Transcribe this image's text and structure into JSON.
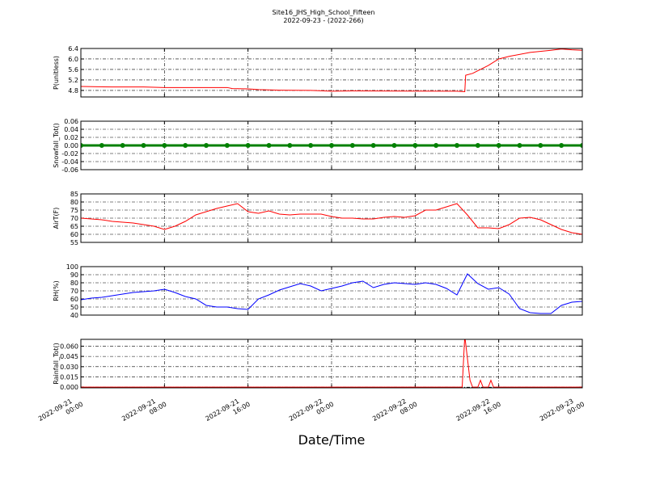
{
  "title": "Site16_JHS_High_School_Fifteen",
  "subtitle": "2022-09-23 - (2022-266)",
  "xlabel": "Date/Time",
  "chart_data": [
    {
      "type": "line",
      "ylabel": "P(unitless)",
      "color": "#ff0000",
      "grid": true,
      "xlim": [
        "2022-09-21 00:00",
        "2022-09-23 00:00"
      ],
      "ylim": [
        4.55,
        6.4
      ],
      "xticks": [
        "2022-09-21 00:00",
        "2022-09-21 08:00",
        "2022-09-21 16:00",
        "2022-09-22 00:00",
        "2022-09-22 08:00",
        "2022-09-22 16:00",
        "2022-09-23 00:00"
      ],
      "yticks": [
        4.8,
        5.2,
        5.6,
        {
          "value": 6,
          "label": "6.0"
        },
        6.4
      ],
      "x": [
        "2022-09-21 00:00",
        "2022-09-21 03:00",
        "2022-09-21 06:00",
        "2022-09-21 08:00",
        "2022-09-21 14:00",
        "2022-09-21 14:30",
        "2022-09-21 16:00",
        "2022-09-21 17:00",
        "2022-09-21 19:00",
        "2022-09-21 22:00",
        "2022-09-22 00:00",
        "2022-09-22 02:00",
        "2022-09-22 12:00",
        "2022-09-22 12:45",
        "2022-09-22 12:50",
        "2022-09-22 13:30",
        "2022-09-22 14:00",
        "2022-09-22 15:00",
        "2022-09-22 16:00",
        "2022-09-22 17:00",
        "2022-09-22 19:00",
        "2022-09-22 21:00",
        "2022-09-22 22:00",
        "2022-09-22 23:00",
        "2022-09-23 00:00"
      ],
      "values": [
        4.95,
        4.93,
        4.93,
        4.91,
        4.91,
        4.87,
        4.86,
        4.83,
        4.81,
        4.8,
        4.77,
        4.78,
        4.77,
        4.75,
        5.38,
        5.45,
        5.55,
        5.75,
        6.0,
        6.1,
        6.25,
        6.33,
        6.38,
        6.35,
        6.33
      ]
    },
    {
      "type": "line",
      "ylabel": "Snowfall_Tot()",
      "color": "#008000",
      "grid": true,
      "markers": true,
      "xlim": [
        "2022-09-21 00:00",
        "2022-09-23 00:00"
      ],
      "ylim": [
        -0.06,
        0.06
      ],
      "xticks": [
        "2022-09-21 00:00",
        "2022-09-21 08:00",
        "2022-09-21 16:00",
        "2022-09-22 00:00",
        "2022-09-22 08:00",
        "2022-09-22 16:00",
        "2022-09-23 00:00"
      ],
      "yticks": [
        -0.06,
        -0.04,
        -0.02,
        {
          "value": 0,
          "label": "0.00"
        },
        0.02,
        0.04,
        0.06
      ],
      "x": [
        "2022-09-21 00:00",
        "2022-09-21 02:00",
        "2022-09-21 04:00",
        "2022-09-21 06:00",
        "2022-09-21 08:00",
        "2022-09-21 10:00",
        "2022-09-21 12:00",
        "2022-09-21 14:00",
        "2022-09-21 16:00",
        "2022-09-21 18:00",
        "2022-09-21 20:00",
        "2022-09-21 22:00",
        "2022-09-22 00:00",
        "2022-09-22 02:00",
        "2022-09-22 04:00",
        "2022-09-22 06:00",
        "2022-09-22 08:00",
        "2022-09-22 10:00",
        "2022-09-22 12:00",
        "2022-09-22 14:00",
        "2022-09-22 16:00",
        "2022-09-22 18:00",
        "2022-09-22 20:00",
        "2022-09-22 22:00",
        "2022-09-23 00:00"
      ],
      "values": [
        0,
        0,
        0,
        0,
        0,
        0,
        0,
        0,
        0,
        0,
        0,
        0,
        0,
        0,
        0,
        0,
        0,
        0,
        0,
        0,
        0,
        0,
        0,
        0,
        0
      ]
    },
    {
      "type": "line",
      "ylabel": "AirT(F)",
      "color": "#ff0000",
      "grid": true,
      "xlim": [
        "2022-09-21 00:00",
        "2022-09-23 00:00"
      ],
      "ylim": [
        55,
        85
      ],
      "xticks": [
        "2022-09-21 00:00",
        "2022-09-21 08:00",
        "2022-09-21 16:00",
        "2022-09-22 00:00",
        "2022-09-22 08:00",
        "2022-09-22 16:00",
        "2022-09-23 00:00"
      ],
      "yticks": [
        55,
        60,
        65,
        70,
        75,
        80,
        85
      ],
      "x": [
        "2022-09-21 00:00",
        "2022-09-21 01:00",
        "2022-09-21 02:00",
        "2022-09-21 03:00",
        "2022-09-21 04:00",
        "2022-09-21 05:00",
        "2022-09-21 06:00",
        "2022-09-21 07:00",
        "2022-09-21 08:00",
        "2022-09-21 09:00",
        "2022-09-21 10:00",
        "2022-09-21 11:00",
        "2022-09-21 12:00",
        "2022-09-21 13:00",
        "2022-09-21 14:00",
        "2022-09-21 15:00",
        "2022-09-21 16:00",
        "2022-09-21 17:00",
        "2022-09-21 18:00",
        "2022-09-21 19:00",
        "2022-09-21 20:00",
        "2022-09-21 21:00",
        "2022-09-21 22:00",
        "2022-09-21 23:00",
        "2022-09-22 00:00",
        "2022-09-22 01:00",
        "2022-09-22 02:00",
        "2022-09-22 03:00",
        "2022-09-22 04:00",
        "2022-09-22 05:00",
        "2022-09-22 06:00",
        "2022-09-22 07:00",
        "2022-09-22 08:00",
        "2022-09-22 09:00",
        "2022-09-22 10:00",
        "2022-09-22 11:00",
        "2022-09-22 12:00",
        "2022-09-22 13:00",
        "2022-09-22 14:00",
        "2022-09-22 15:00",
        "2022-09-22 16:00",
        "2022-09-22 17:00",
        "2022-09-22 18:00",
        "2022-09-22 19:00",
        "2022-09-22 20:00",
        "2022-09-22 21:00",
        "2022-09-22 22:00",
        "2022-09-22 23:00",
        "2022-09-23 00:00"
      ],
      "values": [
        70,
        69.5,
        69,
        68,
        67.5,
        67,
        66,
        65,
        63,
        65,
        68,
        72,
        74,
        76,
        77.5,
        79,
        74,
        73,
        74.5,
        72.5,
        72,
        72.5,
        72.5,
        72.5,
        71,
        70,
        70,
        69.5,
        69.5,
        70.5,
        71,
        70.5,
        71.5,
        75,
        75,
        77,
        79,
        72,
        64,
        64,
        63.5,
        66,
        70,
        70.5,
        69,
        66,
        63,
        61,
        60
      ]
    },
    {
      "type": "line",
      "ylabel": "RH(%)",
      "color": "#0000ff",
      "grid": true,
      "xlim": [
        "2022-09-21 00:00",
        "2022-09-23 00:00"
      ],
      "ylim": [
        40,
        100
      ],
      "xticks": [
        "2022-09-21 00:00",
        "2022-09-21 08:00",
        "2022-09-21 16:00",
        "2022-09-22 00:00",
        "2022-09-22 08:00",
        "2022-09-22 16:00",
        "2022-09-23 00:00"
      ],
      "yticks": [
        40,
        50,
        60,
        70,
        80,
        90,
        100
      ],
      "x": [
        "2022-09-21 00:00",
        "2022-09-21 01:00",
        "2022-09-21 02:00",
        "2022-09-21 03:00",
        "2022-09-21 04:00",
        "2022-09-21 05:00",
        "2022-09-21 06:00",
        "2022-09-21 07:00",
        "2022-09-21 08:00",
        "2022-09-21 09:00",
        "2022-09-21 10:00",
        "2022-09-21 11:00",
        "2022-09-21 12:00",
        "2022-09-21 13:00",
        "2022-09-21 14:00",
        "2022-09-21 15:00",
        "2022-09-21 16:00",
        "2022-09-21 17:00",
        "2022-09-21 18:00",
        "2022-09-21 19:00",
        "2022-09-21 20:00",
        "2022-09-21 21:00",
        "2022-09-21 22:00",
        "2022-09-21 23:00",
        "2022-09-22 00:00",
        "2022-09-22 01:00",
        "2022-09-22 02:00",
        "2022-09-22 03:00",
        "2022-09-22 04:00",
        "2022-09-22 05:00",
        "2022-09-22 06:00",
        "2022-09-22 07:00",
        "2022-09-22 08:00",
        "2022-09-22 09:00",
        "2022-09-22 10:00",
        "2022-09-22 11:00",
        "2022-09-22 12:00",
        "2022-09-22 13:00",
        "2022-09-22 14:00",
        "2022-09-22 15:00",
        "2022-09-22 16:00",
        "2022-09-22 17:00",
        "2022-09-22 18:00",
        "2022-09-22 19:00",
        "2022-09-22 20:00",
        "2022-09-22 21:00",
        "2022-09-22 22:00",
        "2022-09-22 23:00",
        "2022-09-23 00:00"
      ],
      "values": [
        59,
        61,
        62,
        64,
        66,
        68,
        69,
        70,
        72,
        68,
        63,
        60,
        52,
        50,
        50,
        48,
        47,
        60,
        65,
        71,
        75,
        79,
        76,
        70,
        73,
        76,
        80,
        82,
        74,
        78,
        80,
        79,
        78,
        80,
        78,
        73,
        65,
        91,
        79,
        72,
        74,
        66,
        48,
        43,
        42,
        42,
        52,
        56,
        57
      ]
    },
    {
      "type": "line",
      "ylabel": "Rainfall_Tot()",
      "color": "#ff0000",
      "grid": true,
      "xlim": [
        "2022-09-21 00:00",
        "2022-09-23 00:00"
      ],
      "ylim": [
        -0.001,
        0.07
      ],
      "xticks": [
        "2022-09-21 00:00",
        "2022-09-21 08:00",
        "2022-09-21 16:00",
        "2022-09-22 00:00",
        "2022-09-22 08:00",
        "2022-09-22 16:00",
        "2022-09-23 00:00"
      ],
      "yticks": [
        {
          "value": 0,
          "label": "0.000"
        },
        0.015,
        {
          "value": 0.03,
          "label": "0.030"
        },
        0.045,
        {
          "value": 0.06,
          "label": "0.060"
        }
      ],
      "x": [
        "2022-09-21 00:00",
        "2022-09-22 12:30",
        "2022-09-22 12:45",
        "2022-09-22 13:15",
        "2022-09-22 13:30",
        "2022-09-22 14:00",
        "2022-09-22 14:15",
        "2022-09-22 14:30",
        "2022-09-22 15:00",
        "2022-09-22 15:15",
        "2022-09-22 15:30",
        "2022-09-23 00:00"
      ],
      "values": [
        0,
        0,
        0.075,
        0.01,
        0,
        0,
        0.01,
        0,
        0,
        0.01,
        0,
        0
      ]
    }
  ]
}
